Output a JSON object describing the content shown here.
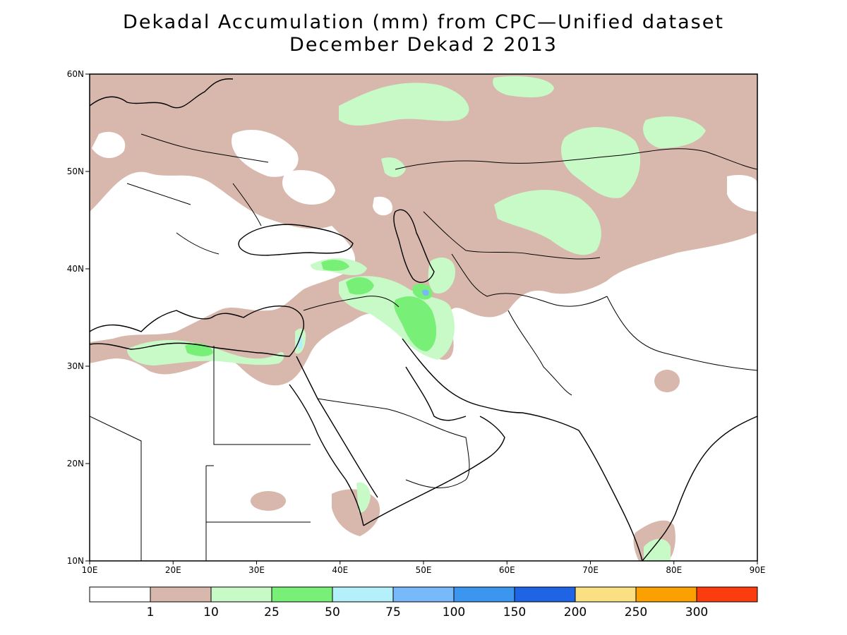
{
  "title": {
    "line1": "Dekadal Accumulation (mm) from CPC—Unified dataset",
    "line2": "December Dekad 2 2013"
  },
  "map": {
    "lon_range": [
      10,
      90
    ],
    "lat_range": [
      10,
      60
    ],
    "lon_ticks": [
      "10E",
      "20E",
      "30E",
      "40E",
      "50E",
      "60E",
      "70E",
      "80E",
      "90E"
    ],
    "lat_ticks": [
      "60N",
      "50N",
      "40N",
      "30N",
      "20N",
      "10N"
    ]
  },
  "colorbar": {
    "colors": [
      "#ffffff",
      "#d8b8ad",
      "#c8fac8",
      "#78f078",
      "#b4f0fa",
      "#78b9fa",
      "#3c96f0",
      "#2064e6",
      "#fae082",
      "#faa000",
      "#fa3c0f"
    ],
    "labels": [
      "1",
      "10",
      "25",
      "50",
      "75",
      "100",
      "150",
      "200",
      "250",
      "300"
    ]
  },
  "legend_colors": {
    "land_outline": "#000000",
    "pink": "#d8b8ad",
    "light_green": "#c8fac8",
    "green": "#78f078",
    "cyan": "#b4f0fa",
    "blue": "#78b9fa"
  }
}
